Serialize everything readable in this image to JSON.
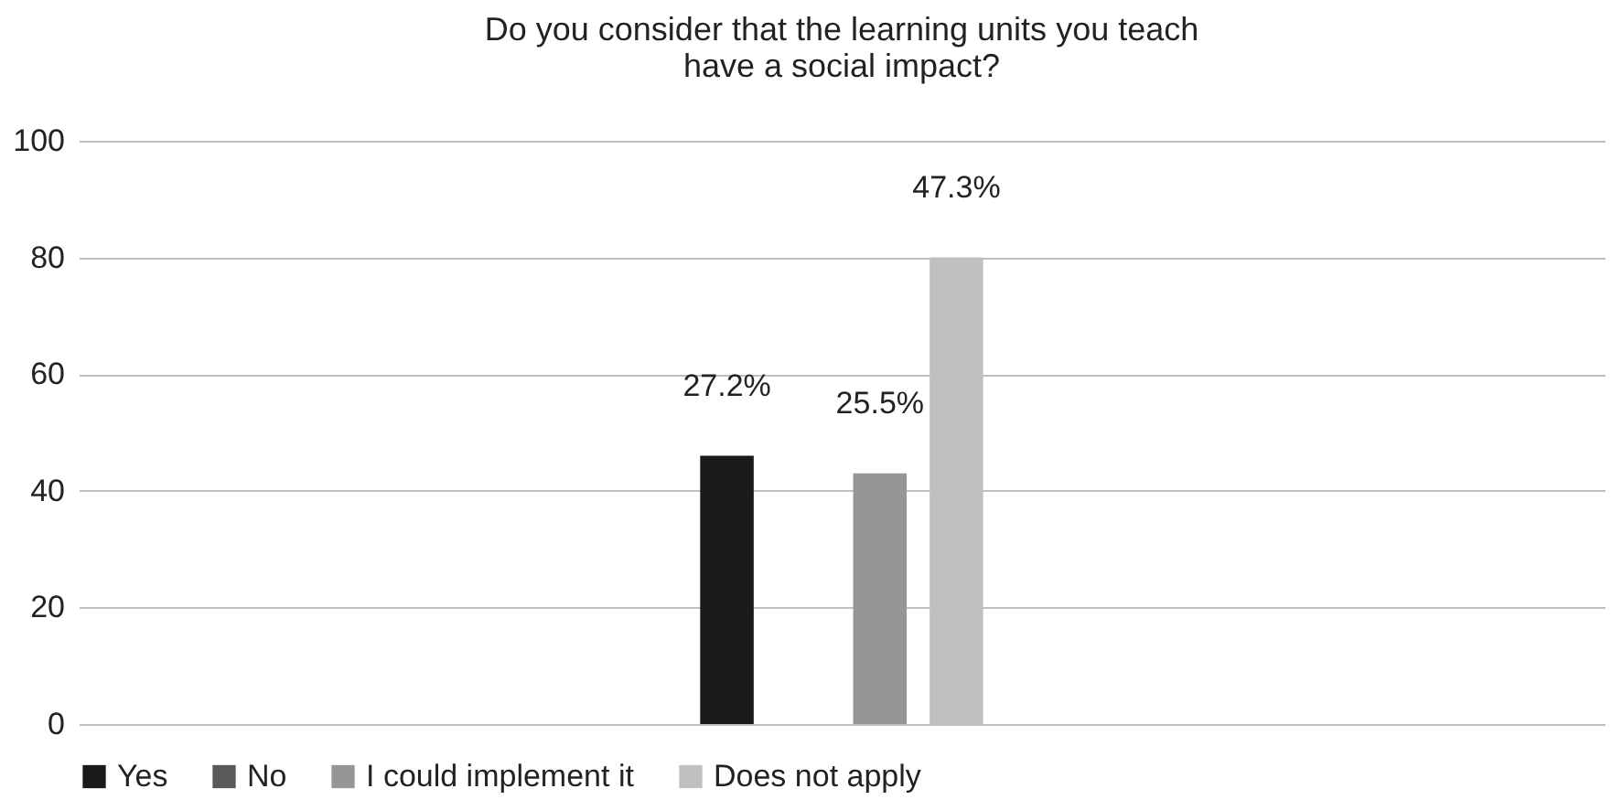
{
  "chart_data": {
    "type": "bar",
    "title": "Do you consider that the learning units you teach\nhave a social impact?",
    "categories": [
      null
    ],
    "series": [
      {
        "name": "Yes",
        "color": "#1a1a1a",
        "values": [
          46
        ]
      },
      {
        "name": "No",
        "color": "#595959",
        "values": [
          0
        ]
      },
      {
        "name": "I could implement it",
        "color": "#969696",
        "values": [
          43
        ]
      },
      {
        "name": "Does not apply",
        "color": "#c0c0c0",
        "values": [
          80
        ]
      }
    ],
    "annotations": [
      {
        "text": "27.2%",
        "y": 46
      },
      {
        "text": "25.5%",
        "y": 43
      },
      {
        "text": "47.3%",
        "y": 80
      }
    ],
    "ylim": [
      0,
      100
    ],
    "yticks": [
      0,
      20,
      40,
      60,
      80,
      100
    ],
    "grid": "y",
    "legend": "bottom"
  }
}
